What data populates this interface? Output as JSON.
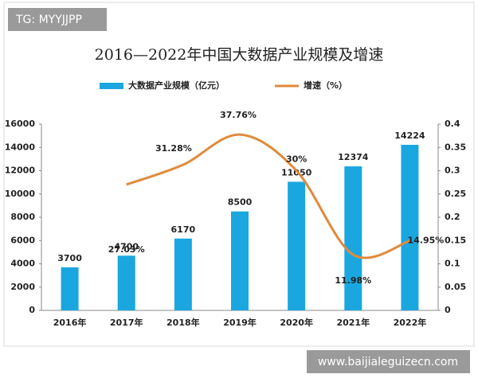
{
  "chart_data": {
    "type": "bar-line",
    "title": "2016—2022年中国大数据产业规模及增速",
    "categories": [
      "2016年",
      "2017年",
      "2018年",
      "2019年",
      "2020年",
      "2021年",
      "2022年"
    ],
    "series": [
      {
        "name": "大数据产业规模（亿元）",
        "color": "#1aa7e0",
        "type": "bar",
        "values": [
          3700,
          4700,
          6170,
          8500,
          11050,
          12374,
          14224
        ]
      },
      {
        "name": "增速（%）",
        "color": "#e08a3c",
        "type": "line",
        "axis": "y2",
        "values": [
          null,
          0.2703,
          0.3128,
          0.3776,
          0.3,
          0.1198,
          0.1495
        ],
        "value_labels": [
          null,
          "27.03%",
          "31.28%",
          "37.76%",
          "30%",
          "11.98%",
          "14.95%"
        ]
      }
    ],
    "ylim": [
      0,
      16000
    ],
    "yticks": [
      0,
      2000,
      4000,
      6000,
      8000,
      10000,
      12000,
      14000,
      16000
    ],
    "y2lim": [
      0,
      0.4
    ],
    "y2ticks": [
      0,
      0.05,
      0.1,
      0.15,
      0.2,
      0.25,
      0.3,
      0.35,
      0.4
    ],
    "grid": false,
    "legend": "top"
  },
  "watermarks": [
    "TG: MYYJJPP",
    "www.baijialeguizecn.com"
  ]
}
